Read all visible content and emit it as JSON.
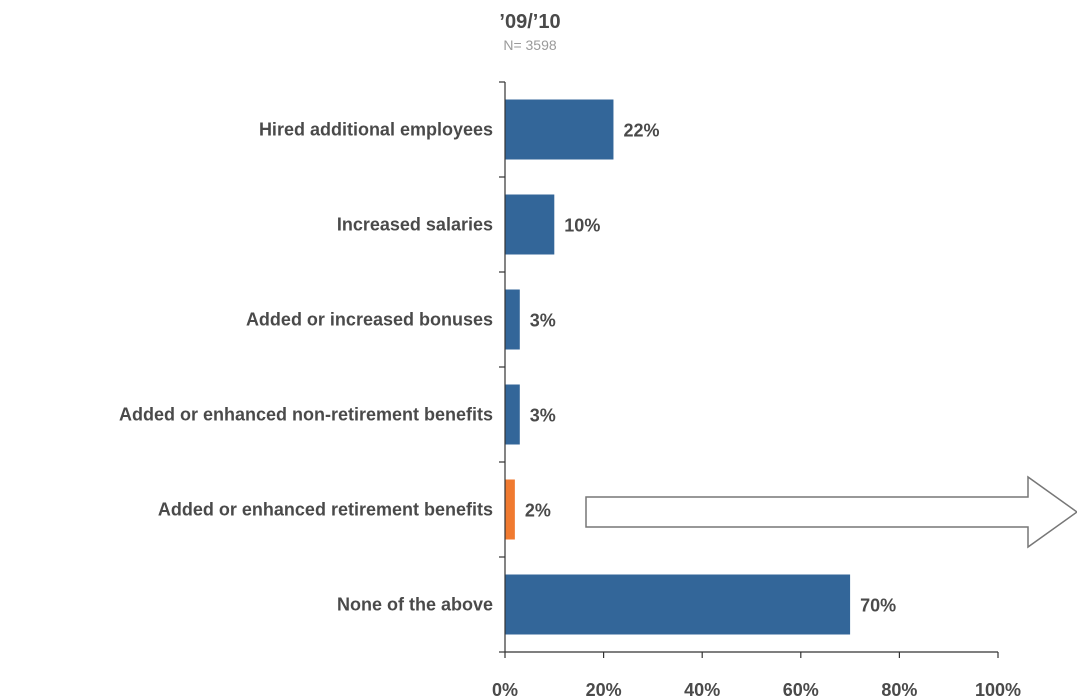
{
  "chart_data": {
    "type": "bar",
    "orientation": "horizontal",
    "title": "’09/’10",
    "subtitle": "N= 3598",
    "categories": [
      "Hired additional employees",
      "Increased salaries",
      "Added or increased bonuses",
      "Added or enhanced non-retirement benefits",
      "Added or enhanced retirement benefits",
      "None of the above"
    ],
    "values": [
      22,
      10,
      3,
      3,
      2,
      70
    ],
    "value_labels": [
      "22%",
      "10%",
      "3%",
      "3%",
      "2%",
      "70%"
    ],
    "highlight_index": 4,
    "xlim": [
      0,
      100
    ],
    "x_ticks": [
      0,
      20,
      40,
      60,
      80,
      100
    ],
    "x_tick_labels": [
      "0%",
      "20%",
      "40%",
      "60%",
      "80%",
      "100%"
    ],
    "grid": false,
    "legend": "none",
    "colors": {
      "bar": "#336699",
      "highlight": "#f07a30",
      "text": "#4a4a4a",
      "subtitle": "#9a9a9a",
      "axis": "#333333",
      "arrow_stroke": "#777777"
    }
  }
}
